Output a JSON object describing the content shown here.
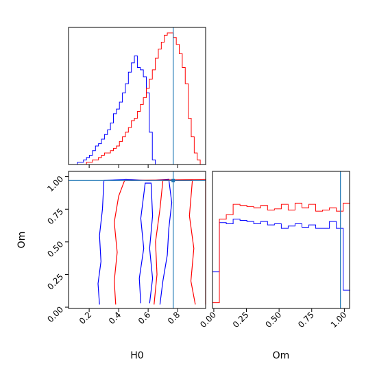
{
  "chart_data": {
    "type": "corner",
    "parameters": [
      "H0",
      "Om"
    ],
    "xlabels": {
      "H0": "H0",
      "Om": "Om"
    },
    "ylabel": "Om",
    "truth": {
      "H0": 0.77,
      "Om": 0.97
    },
    "ranges": {
      "H0": [
        0.06,
        0.99
      ],
      "Om": [
        -0.01,
        1.04
      ]
    },
    "ticks": {
      "H0": [
        "0.2",
        "0.4",
        "0.6",
        "0.8"
      ],
      "Om": [
        "0.00",
        "0.25",
        "0.50",
        "0.75",
        "1.00"
      ]
    },
    "series": [
      {
        "name": "",
        "color": "#0000ff",
        "hist_H0": {
          "edges_start": 0.06,
          "bin_width": 0.0203,
          "values": [
            0,
            0,
            0,
            0.01,
            0.01,
            0.02,
            0.03,
            0.04,
            0.06,
            0.08,
            0.09,
            0.11,
            0.13,
            0.15,
            0.18,
            0.22,
            0.24,
            0.27,
            0.31,
            0.35,
            0.4,
            0.44,
            0.47,
            0.42,
            0.41,
            0.38,
            0.31,
            0.14,
            0.02,
            0,
            0,
            0,
            0,
            0,
            0,
            0,
            0,
            0,
            0,
            0,
            0,
            0,
            0,
            0,
            0,
            0
          ]
        },
        "hist_Om": {
          "edges_start": -0.01,
          "bin_width": 0.0527,
          "values": [
            0.32,
            0.75,
            0.74,
            0.78,
            0.77,
            0.76,
            0.74,
            0.76,
            0.73,
            0.74,
            0.7,
            0.72,
            0.74,
            0.71,
            0.73,
            0.7,
            0.7,
            0.76,
            0.7,
            0.16
          ]
        },
        "contours": [
          [
            [
              0.27,
              0.02
            ],
            [
              0.26,
              0.18
            ],
            [
              0.28,
              0.35
            ],
            [
              0.27,
              0.55
            ],
            [
              0.29,
              0.75
            ],
            [
              0.3,
              0.97
            ],
            [
              0.45,
              0.98
            ],
            [
              0.6,
              0.97
            ],
            [
              0.74,
              0.98
            ],
            [
              0.76,
              0.8
            ],
            [
              0.74,
              0.6
            ],
            [
              0.73,
              0.4
            ],
            [
              0.7,
              0.2
            ],
            [
              0.68,
              0.02
            ]
          ],
          [
            [
              0.55,
              0.03
            ],
            [
              0.54,
              0.22
            ],
            [
              0.57,
              0.45
            ],
            [
              0.55,
              0.68
            ],
            [
              0.58,
              0.95
            ],
            [
              0.62,
              0.95
            ],
            [
              0.63,
              0.7
            ],
            [
              0.61,
              0.45
            ],
            [
              0.63,
              0.22
            ],
            [
              0.61,
              0.03
            ]
          ]
        ]
      },
      {
        "name": "",
        "color": "#ff0000",
        "hist_H0": {
          "edges_start": 0.06,
          "bin_width": 0.0203,
          "values": [
            0,
            0,
            0,
            0,
            0,
            0,
            0.01,
            0.01,
            0.02,
            0.02,
            0.03,
            0.04,
            0.05,
            0.05,
            0.06,
            0.07,
            0.08,
            0.1,
            0.12,
            0.14,
            0.16,
            0.19,
            0.2,
            0.23,
            0.26,
            0.29,
            0.33,
            0.37,
            0.41,
            0.46,
            0.5,
            0.53,
            0.56,
            0.57,
            0.57,
            0.55,
            0.52,
            0.48,
            0.42,
            0.35,
            0.2,
            0.12,
            0.05,
            0.02,
            0,
            0
          ]
        },
        "hist_Om": {
          "edges_start": -0.01,
          "bin_width": 0.0527,
          "values": [
            0.05,
            0.78,
            0.82,
            0.91,
            0.9,
            0.89,
            0.88,
            0.9,
            0.86,
            0.87,
            0.91,
            0.86,
            0.92,
            0.88,
            0.91,
            0.85,
            0.86,
            0.88,
            0.85,
            0.92
          ]
        },
        "contours": [
          [
            [
              0.38,
              0.02
            ],
            [
              0.37,
              0.2
            ],
            [
              0.39,
              0.42
            ],
            [
              0.37,
              0.65
            ],
            [
              0.4,
              0.85
            ],
            [
              0.44,
              0.97
            ],
            [
              0.99,
              0.98
            ],
            [
              0.99,
              0.02
            ]
          ],
          [
            [
              0.64,
              0.02
            ],
            [
              0.66,
              0.25
            ],
            [
              0.65,
              0.5
            ],
            [
              0.68,
              0.75
            ],
            [
              0.7,
              0.97
            ],
            [
              0.9,
              0.97
            ],
            [
              0.88,
              0.7
            ],
            [
              0.91,
              0.45
            ],
            [
              0.89,
              0.2
            ],
            [
              0.92,
              0.02
            ]
          ]
        ]
      }
    ]
  }
}
